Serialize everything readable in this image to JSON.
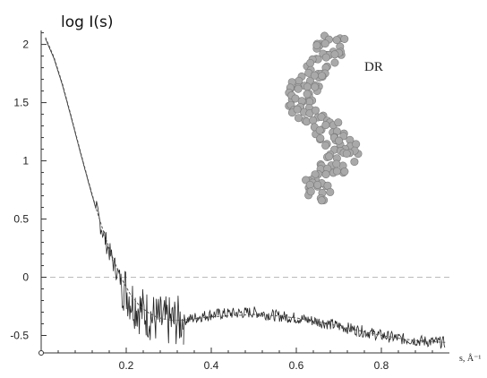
{
  "chart_data": {
    "type": "line",
    "ylabel": "log I(s)",
    "xlabel": "s, Å⁻¹",
    "xlim": [
      0.0,
      0.96
    ],
    "ylim": [
      -0.65,
      2.12
    ],
    "x_ticks": [
      0.2,
      0.4,
      0.6,
      0.8
    ],
    "x_tick_labels": [
      "0.2",
      "0.4",
      "0.6",
      "0.8"
    ],
    "y_ticks": [
      -0.5,
      0,
      0.5,
      1,
      1.5,
      2
    ],
    "y_tick_labels": [
      "-0.5",
      "0",
      "0.5",
      "1",
      "1.5",
      "2"
    ],
    "zero_reference_line": 0,
    "grid": false,
    "series": [
      {
        "style": "solid-noisy",
        "x": [
          0.01,
          0.03,
          0.05,
          0.07,
          0.09,
          0.11,
          0.13,
          0.15,
          0.17,
          0.19,
          0.21,
          0.23,
          0.25,
          0.27,
          0.29,
          0.31,
          0.33,
          0.35,
          0.37,
          0.4,
          0.45,
          0.5,
          0.55,
          0.6,
          0.65,
          0.7,
          0.75,
          0.8,
          0.85,
          0.9,
          0.95
        ],
        "y": [
          2.05,
          1.88,
          1.65,
          1.38,
          1.1,
          0.83,
          0.57,
          0.33,
          0.12,
          -0.05,
          -0.18,
          -0.27,
          -0.32,
          -0.36,
          -0.38,
          -0.38,
          -0.37,
          -0.36,
          -0.34,
          -0.32,
          -0.31,
          -0.3,
          -0.33,
          -0.35,
          -0.38,
          -0.42,
          -0.46,
          -0.5,
          -0.53,
          -0.55,
          -0.56
        ]
      },
      {
        "style": "dashed-fit",
        "x": [
          0.01,
          0.03,
          0.05,
          0.07,
          0.09,
          0.11,
          0.13,
          0.15,
          0.17,
          0.19,
          0.21,
          0.23,
          0.25,
          0.27,
          0.29,
          0.31,
          0.33,
          0.35,
          0.4,
          0.45,
          0.5,
          0.55,
          0.6,
          0.65,
          0.7,
          0.75,
          0.8,
          0.85,
          0.9,
          0.95
        ],
        "y": [
          2.06,
          1.89,
          1.66,
          1.39,
          1.11,
          0.84,
          0.58,
          0.35,
          0.15,
          -0.02,
          -0.15,
          -0.24,
          -0.3,
          -0.34,
          -0.36,
          -0.37,
          -0.37,
          -0.36,
          -0.34,
          -0.33,
          -0.32,
          -0.33,
          -0.35,
          -0.38,
          -0.42,
          -0.46,
          -0.5,
          -0.53,
          -0.55,
          -0.56
        ]
      }
    ],
    "inset": {
      "label": "DR",
      "picture": "protein-bead-model",
      "bead_color": "#a9a9a9"
    }
  }
}
